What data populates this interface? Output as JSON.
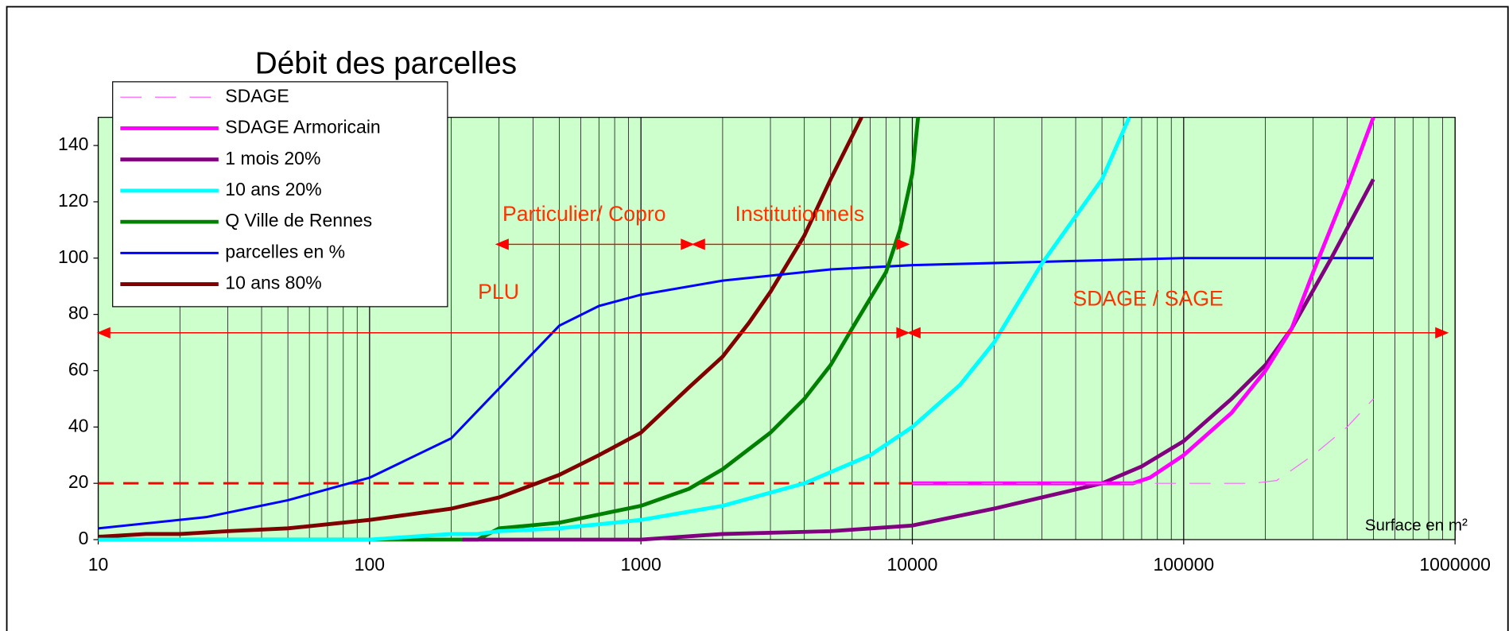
{
  "chart_data": {
    "type": "line",
    "title": "Débit des parcelles",
    "xlabel": "Surface en m²",
    "xscale": "log",
    "xlim": [
      10,
      1000000
    ],
    "xticks": [
      10,
      100,
      1000,
      10000,
      100000,
      1000000
    ],
    "ylim": [
      0,
      150
    ],
    "yticks": [
      0,
      20,
      40,
      60,
      80,
      100,
      120,
      140
    ],
    "grid": true,
    "background": "#ccffcc",
    "annotations": [
      "PLU",
      "SDAGE / SAGE",
      "Particulier/ Copro",
      "Institutionnels"
    ],
    "series": [
      {
        "name": "SDAGE",
        "color": "#ff66ff",
        "width": 1,
        "dash": true,
        "x": [
          10000,
          50000,
          100000,
          180000,
          220000,
          300000,
          400000,
          500000
        ],
        "values": [
          20,
          20,
          20,
          20,
          21,
          30,
          40,
          50
        ]
      },
      {
        "name": "SDAGE Armoricain",
        "color": "#ff00ff",
        "width": 4,
        "x": [
          10000,
          30000,
          65000,
          75000,
          100000,
          150000,
          200000,
          250000,
          300000,
          400000,
          500000
        ],
        "values": [
          20,
          20,
          20,
          22,
          30,
          45,
          60,
          75,
          95,
          125,
          150
        ]
      },
      {
        "name": "1 mois 20%",
        "color": "#800080",
        "width": 4,
        "x": [
          220,
          500,
          1000,
          2000,
          5000,
          10000,
          20000,
          50000,
          70000,
          100000,
          150000,
          200000,
          250000,
          350000,
          500000
        ],
        "values": [
          0,
          0,
          0,
          2,
          3,
          5,
          11,
          20,
          26,
          35,
          50,
          62,
          75,
          100,
          128
        ]
      },
      {
        "name": "10 ans 20%",
        "color": "#00ffff",
        "width": 4,
        "x": [
          10,
          100,
          200,
          250,
          300,
          500,
          1000,
          2000,
          4000,
          7000,
          10000,
          15000,
          20000,
          30000,
          50000,
          63000
        ],
        "values": [
          0,
          0,
          2,
          2,
          3,
          4,
          7,
          12,
          20,
          30,
          40,
          55,
          70,
          98,
          128,
          150
        ]
      },
      {
        "name": "Q Ville de Rennes",
        "color": "#008000",
        "width": 4,
        "x": [
          10,
          250,
          300,
          500,
          1000,
          1500,
          2000,
          3000,
          4000,
          5000,
          6000,
          8000,
          9000,
          10000,
          10500
        ],
        "values": [
          0,
          0,
          4,
          6,
          12,
          18,
          25,
          38,
          50,
          62,
          75,
          95,
          110,
          130,
          150
        ]
      },
      {
        "name": "parcelles en %",
        "color": "#0000ff",
        "width": 2.5,
        "x": [
          10,
          25,
          50,
          100,
          200,
          500,
          700,
          1000,
          2000,
          5000,
          10000,
          100000,
          500000
        ],
        "values": [
          4,
          8,
          14,
          22,
          36,
          76,
          83,
          87,
          92,
          96,
          97.5,
          100,
          100
        ]
      },
      {
        "name": "10 ans 80%",
        "color": "#800000",
        "width": 4,
        "x": [
          10,
          15,
          20,
          30,
          50,
          100,
          200,
          300,
          500,
          700,
          1000,
          1500,
          2000,
          2500,
          3000,
          4000,
          5000,
          6500
        ],
        "values": [
          1,
          2,
          2,
          3,
          4,
          7,
          11,
          15,
          23,
          30,
          38,
          54,
          65,
          77,
          88,
          108,
          128,
          150
        ]
      },
      {
        "color": "#ff0000",
        "width": 2.5,
        "dash": true,
        "x": [
          10,
          10000
        ],
        "values": [
          20,
          20
        ]
      }
    ]
  }
}
